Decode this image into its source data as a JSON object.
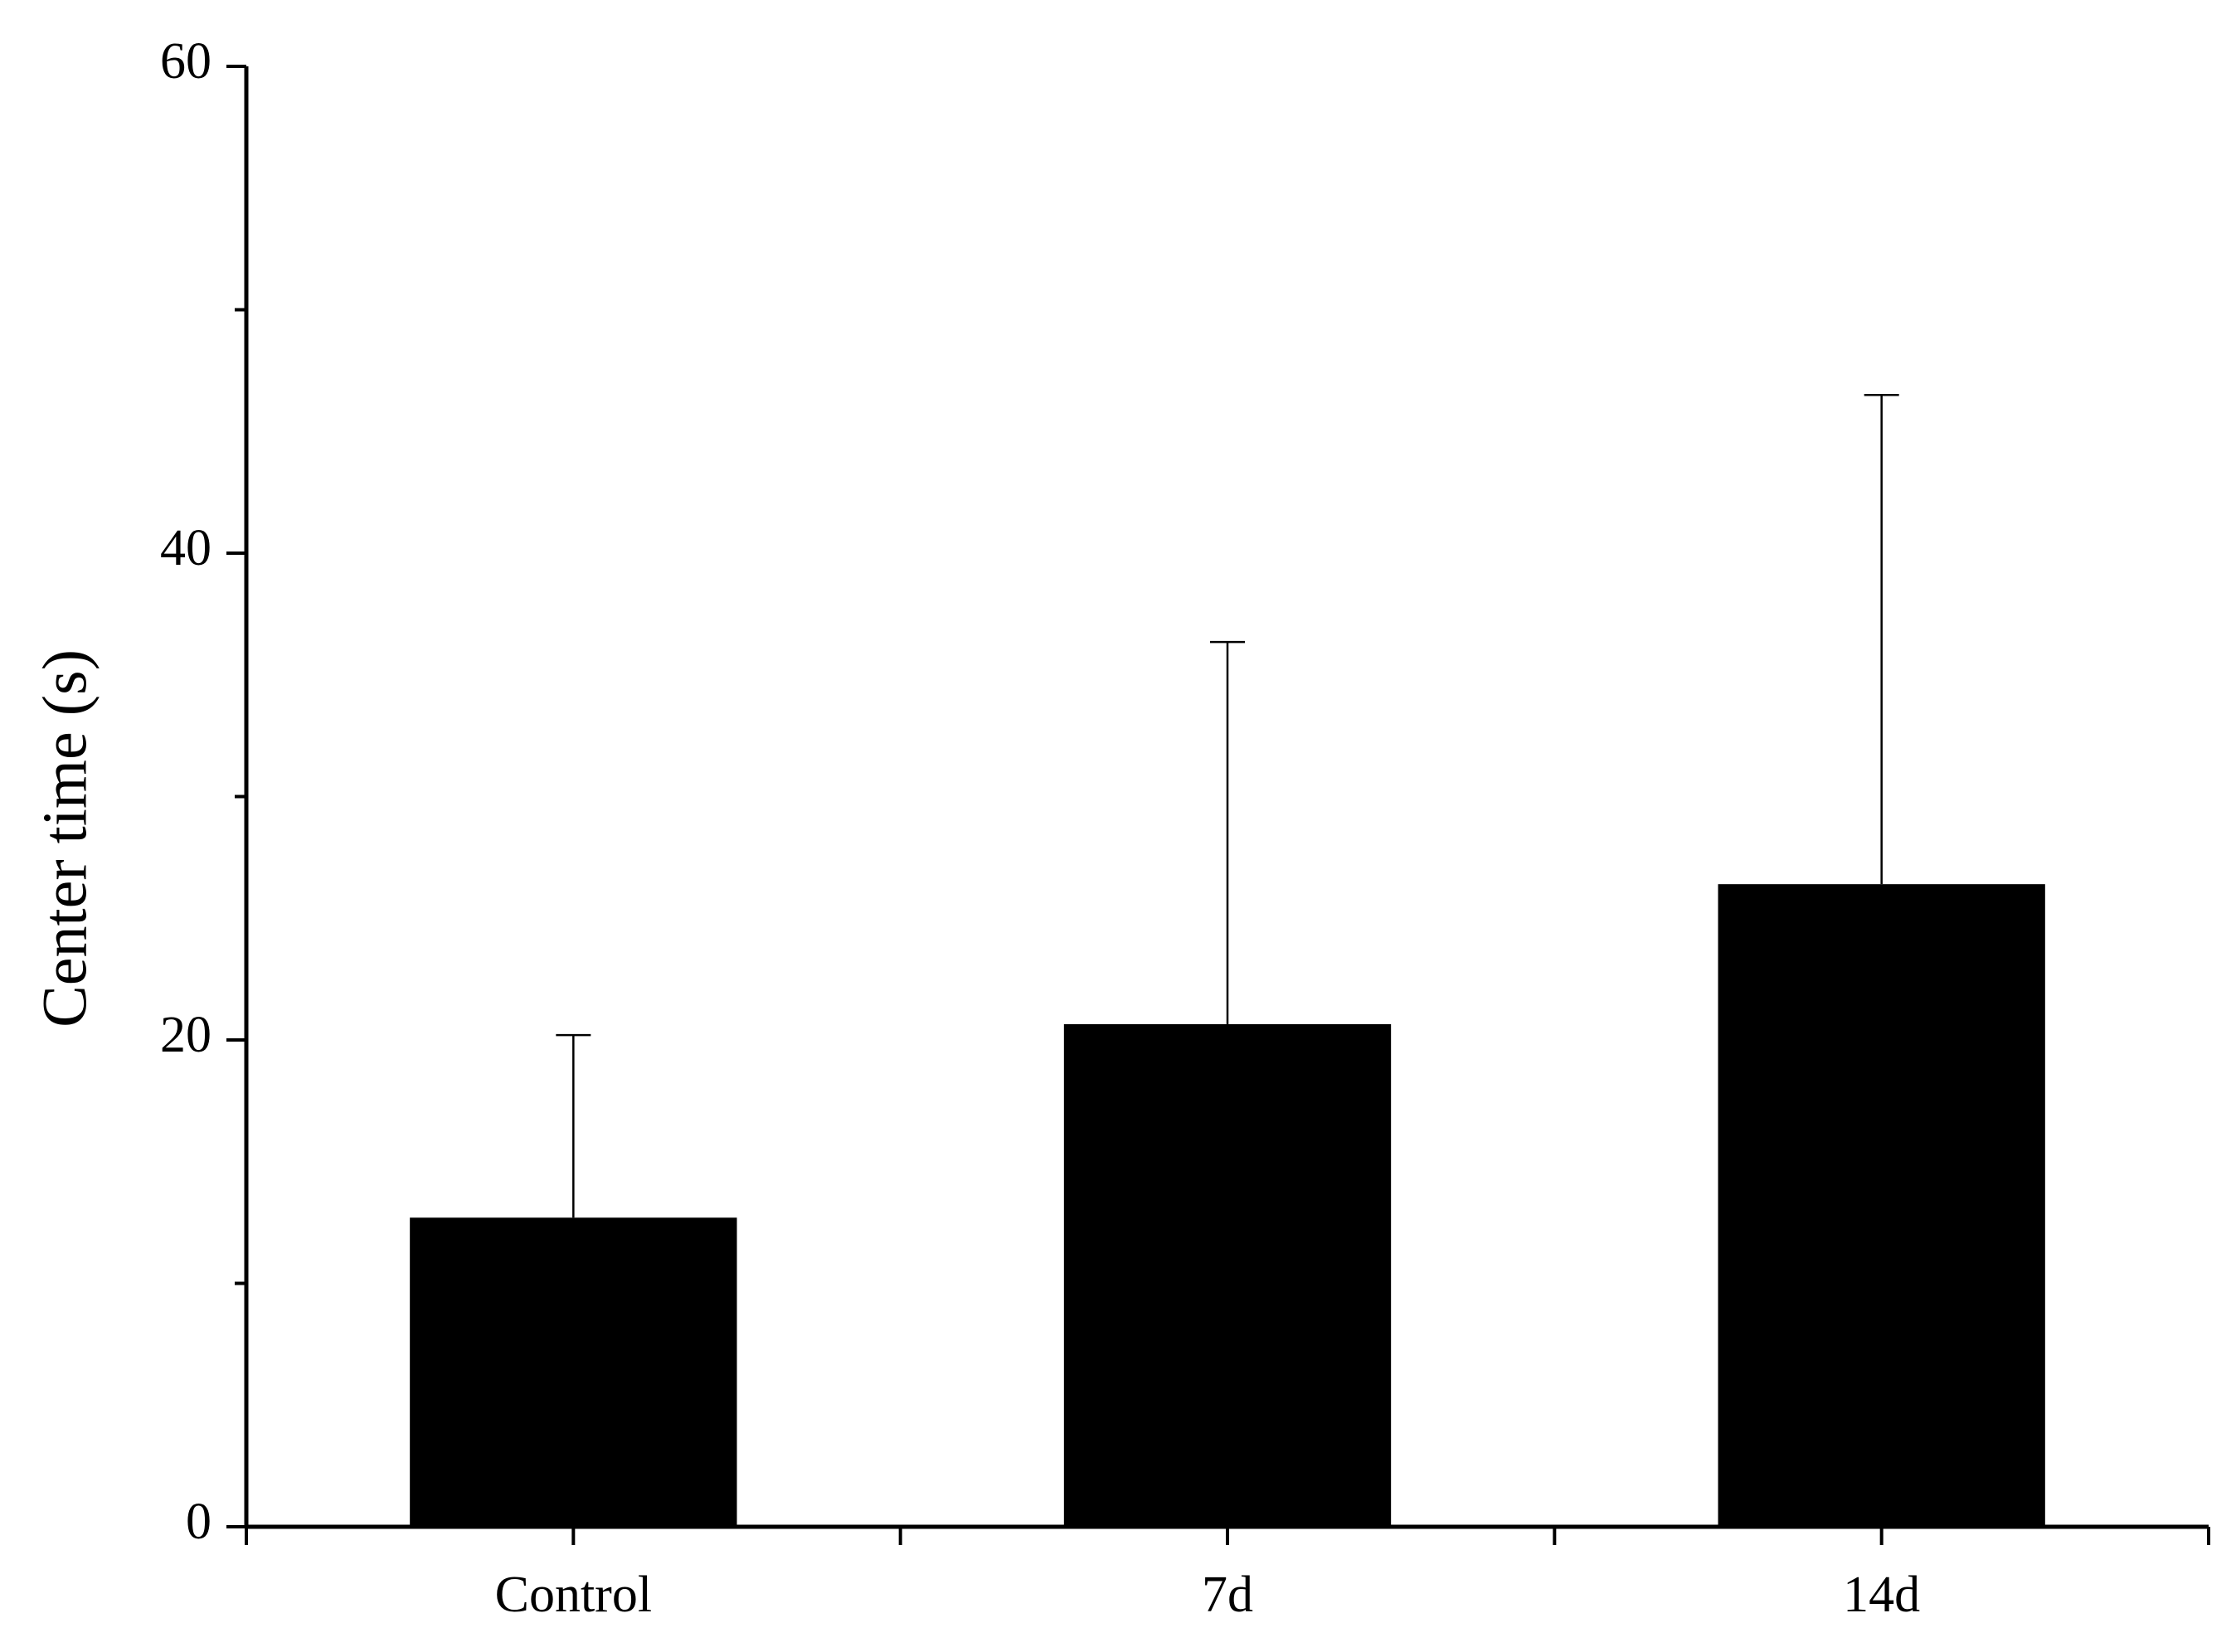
{
  "chart_data": {
    "type": "bar",
    "ylabel": "Center time (s)",
    "categories": [
      "Control",
      "7d",
      "14d"
    ],
    "values": [
      12.7,
      20.65,
      26.4
    ],
    "errors": [
      7.5,
      15.7,
      20.1
    ],
    "color": "#000000",
    "ylim": [
      0,
      60
    ],
    "yticks": [
      0,
      20,
      40,
      60
    ],
    "minor_yticks": [
      10,
      30,
      50
    ],
    "grid": false
  }
}
